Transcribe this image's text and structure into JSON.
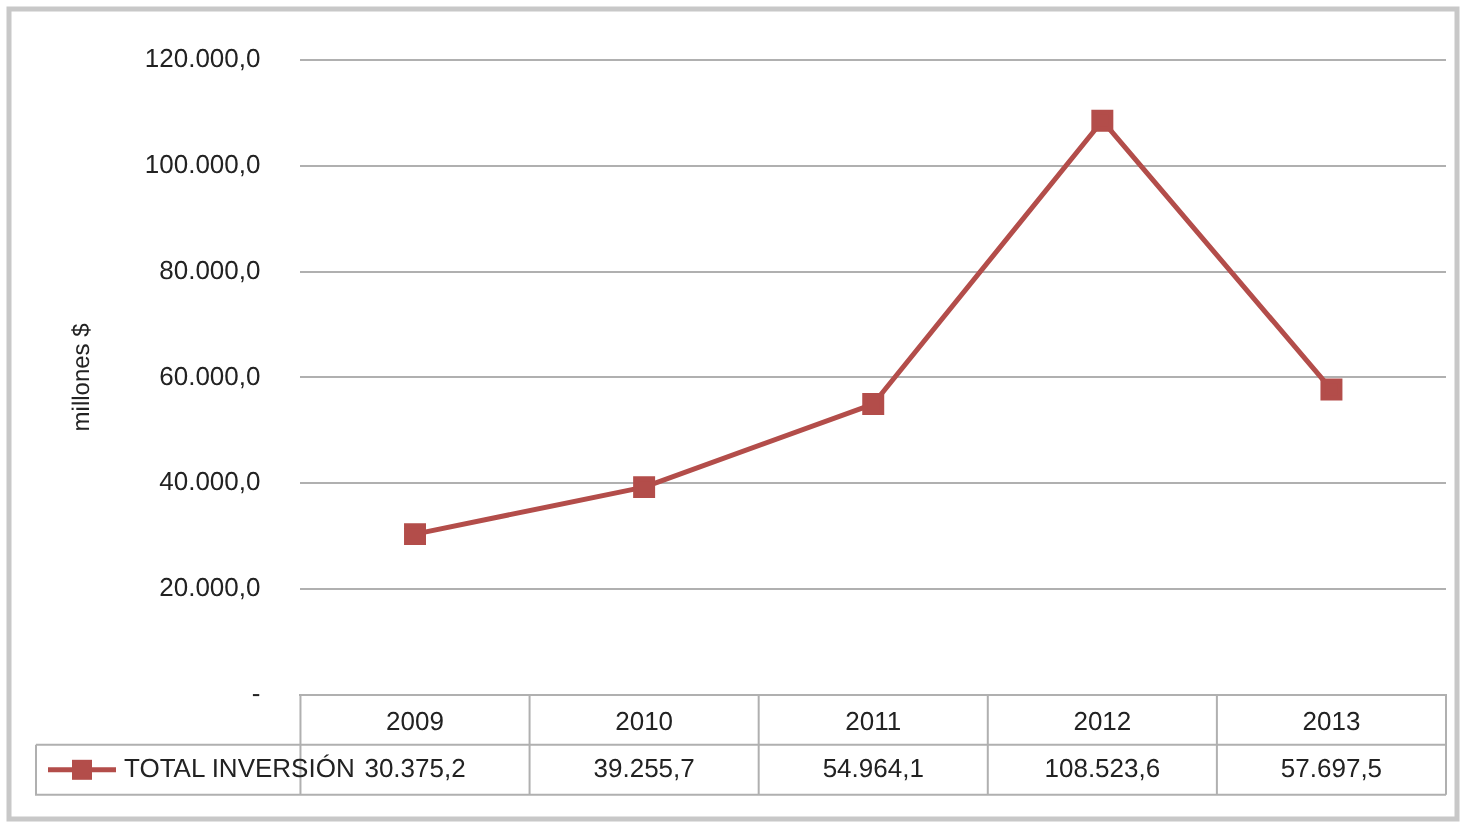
{
  "chart_data": {
    "type": "line",
    "ylabel": "millones $",
    "categories": [
      "2009",
      "2010",
      "2011",
      "2012",
      "2013"
    ],
    "series": [
      {
        "name": "TOTAL INVERSIÓN",
        "color": "#b34d4a",
        "values": [
          30375.2,
          39255.7,
          54964.1,
          108523.6,
          57697.5
        ],
        "value_labels": [
          "30.375,2",
          "39.255,7",
          "54.964,1",
          "108.523,6",
          "57.697,5"
        ]
      }
    ],
    "ylim": [
      0,
      120000
    ],
    "yticks": [
      {
        "value": 0,
        "label": "-"
      },
      {
        "value": 20000,
        "label": "20.000,0"
      },
      {
        "value": 40000,
        "label": "40.000,0"
      },
      {
        "value": 60000,
        "label": "60.000,0"
      },
      {
        "value": 80000,
        "label": "80.000,0"
      },
      {
        "value": 100000,
        "label": "100.000,0"
      },
      {
        "value": 120000,
        "label": "120.000,0"
      }
    ],
    "grid": "y",
    "marker": "square",
    "line_style": "solid",
    "legend": "bottom"
  }
}
